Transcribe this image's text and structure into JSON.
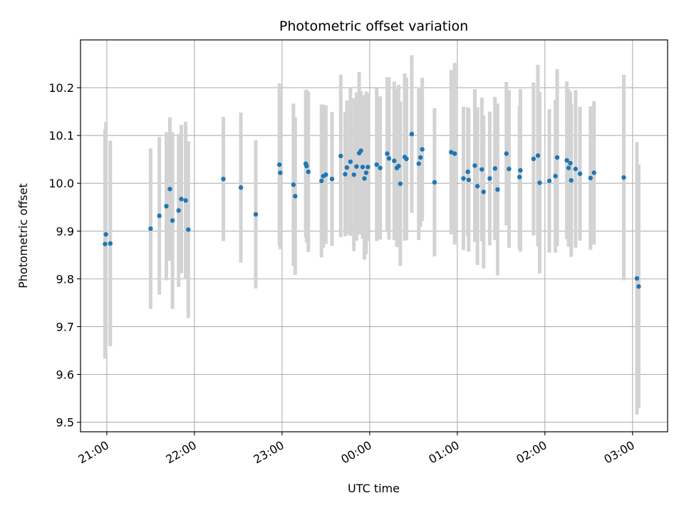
{
  "chart_data": {
    "type": "scatter",
    "title": "Photometric offset variation",
    "xlabel": "UTC time",
    "ylabel": "Photometric offset",
    "x_reference_date": "",
    "x_ticks": [
      "21:00",
      "22:00",
      "23:00",
      "00:00",
      "01:00",
      "02:00",
      "03:00"
    ],
    "x_tick_hours": [
      21,
      22,
      23,
      24,
      25,
      26,
      27
    ],
    "xlim_hours": [
      20.7,
      27.4
    ],
    "y_ticks": [
      9.5,
      9.6,
      9.7,
      9.8,
      9.9,
      10.0,
      10.1,
      10.2
    ],
    "y_tick_labels": [
      "9.5",
      "9.6",
      "9.7",
      "9.8",
      "9.9",
      "10.0",
      "10.1",
      "10.2"
    ],
    "ylim": [
      9.48,
      10.3
    ],
    "grid": true,
    "colors": {
      "points": "#1f77b4",
      "error_bars": "#d3d3d3",
      "grid": "#b0b0b0",
      "axes": "#000000"
    },
    "series": [
      {
        "x_hours": [
          20.98,
          20.99,
          21.04,
          21.5,
          21.6,
          21.68,
          21.72,
          21.75,
          21.82,
          21.85,
          21.9,
          21.93,
          22.33,
          22.53,
          22.7,
          22.97,
          22.98,
          23.13,
          23.15,
          23.27,
          23.28,
          23.3,
          23.45,
          23.47,
          23.5,
          23.57,
          23.67,
          23.72,
          23.74,
          23.78,
          23.82,
          23.85,
          23.88,
          23.9,
          23.92,
          23.94,
          23.96,
          23.98,
          24.08,
          24.12,
          24.2,
          24.22,
          24.28,
          24.31,
          24.33,
          24.35,
          24.4,
          24.42,
          24.48,
          24.56,
          24.58,
          24.6,
          24.74,
          24.93,
          24.97,
          25.07,
          25.12,
          25.13,
          25.2,
          25.23,
          25.28,
          25.3,
          25.37,
          25.43,
          25.46,
          25.56,
          25.59,
          25.71,
          25.72,
          25.87,
          25.92,
          25.94,
          26.05,
          26.12,
          26.14,
          26.25,
          26.27,
          26.29,
          26.3,
          26.35,
          26.4,
          26.52,
          26.56,
          26.9,
          27.05,
          27.07
        ],
        "y": [
          9.873,
          9.893,
          9.874,
          9.905,
          9.932,
          9.952,
          9.988,
          9.922,
          9.943,
          9.967,
          9.964,
          9.903,
          10.009,
          9.991,
          9.935,
          10.039,
          10.022,
          9.997,
          9.973,
          10.041,
          10.036,
          10.024,
          10.005,
          10.015,
          10.018,
          10.009,
          10.057,
          10.019,
          10.033,
          10.045,
          10.018,
          10.035,
          10.063,
          10.068,
          10.034,
          10.01,
          10.022,
          10.034,
          10.039,
          10.032,
          10.062,
          10.052,
          10.047,
          10.032,
          10.036,
          9.999,
          10.055,
          10.051,
          10.103,
          10.041,
          10.054,
          10.071,
          10.002,
          10.065,
          10.062,
          10.01,
          10.024,
          10.007,
          10.037,
          9.994,
          10.029,
          9.982,
          10.01,
          10.031,
          9.987,
          10.062,
          10.03,
          10.013,
          10.027,
          10.051,
          10.058,
          10.001,
          10.005,
          10.015,
          10.054,
          10.048,
          10.032,
          10.042,
          10.006,
          10.03,
          10.02,
          10.011,
          10.022,
          10.012,
          9.801,
          9.784
        ],
        "err": [
          0.24,
          0.235,
          0.215,
          0.168,
          0.165,
          0.155,
          0.15,
          0.185,
          0.16,
          0.155,
          0.165,
          0.185,
          0.13,
          0.157,
          0.155,
          0.17,
          0.16,
          0.17,
          0.165,
          0.154,
          0.16,
          0.168,
          0.16,
          0.15,
          0.145,
          0.14,
          0.17,
          0.13,
          0.14,
          0.155,
          0.16,
          0.155,
          0.17,
          0.125,
          0.15,
          0.17,
          0.17,
          0.155,
          0.16,
          0.15,
          0.16,
          0.17,
          0.166,
          0.165,
          0.17,
          0.172,
          0.175,
          0.17,
          0.165,
          0.16,
          0.145,
          0.15,
          0.155,
          0.172,
          0.19,
          0.15,
          0.135,
          0.15,
          0.16,
          0.165,
          0.15,
          0.16,
          0.14,
          0.15,
          0.18,
          0.15,
          0.165,
          0.15,
          0.17,
          0.16,
          0.19,
          0.19,
          0.15,
          0.16,
          0.185,
          0.165,
          0.165,
          0.15,
          0.16,
          0.165,
          0.14,
          0.15,
          0.15,
          0.215,
          0.285,
          0.255
        ]
      }
    ]
  }
}
